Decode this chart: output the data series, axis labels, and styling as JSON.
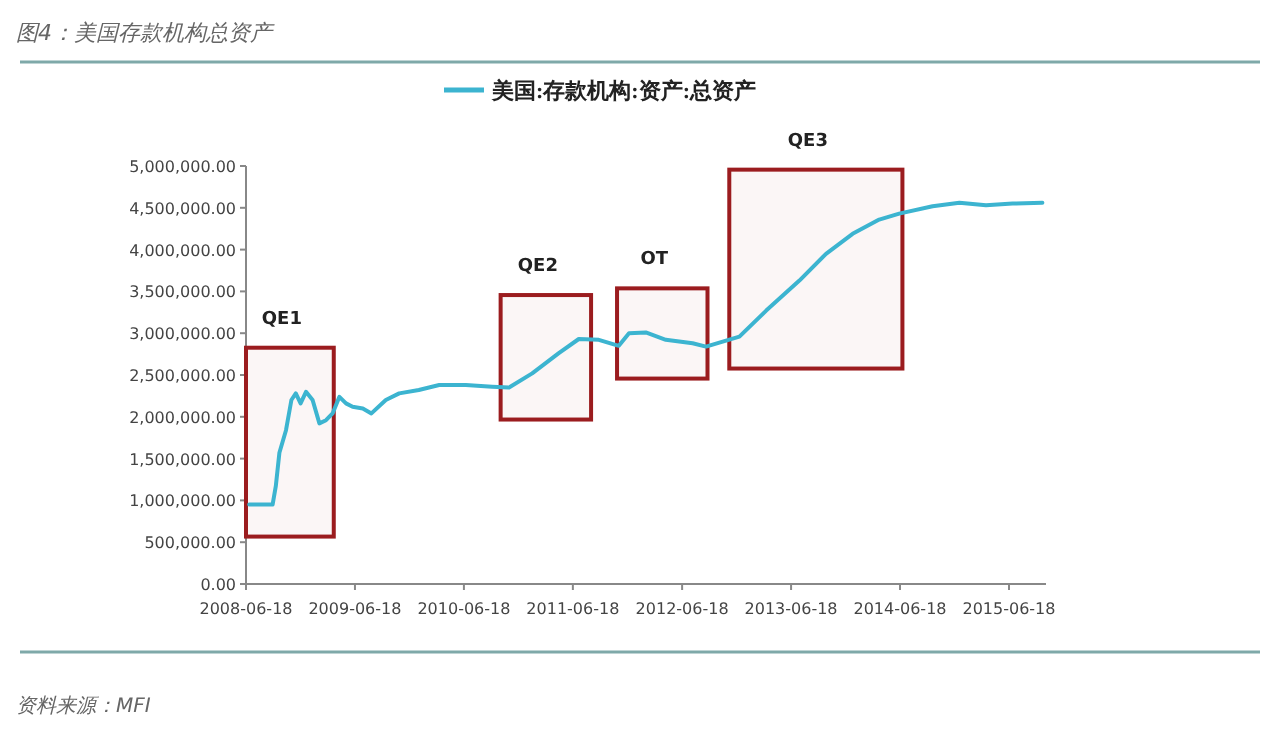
{
  "chart_data": {
    "type": "line",
    "title": "图4：美国存款机构总资产",
    "legend": "top",
    "x": [
      "2008-06-29",
      "2008-09-15",
      "2008-09-26",
      "2008-10-08",
      "2008-10-30",
      "2008-11-17",
      "2008-12-02",
      "2008-12-18",
      "2009-01-05",
      "2009-01-27",
      "2009-02-19",
      "2009-03-13",
      "2009-04-04",
      "2009-04-27",
      "2009-05-19",
      "2009-06-10",
      "2009-07-14",
      "2009-08-12",
      "2009-09-29",
      "2009-11-13",
      "2010-01-18",
      "2010-03-27",
      "2010-06-24",
      "2010-09-21",
      "2010-11-16",
      "2011-02-02",
      "2011-05-02",
      "2011-07-08",
      "2011-09-13",
      "2011-11-19",
      "2011-12-23",
      "2012-02-17",
      "2012-04-24",
      "2012-07-23",
      "2012-09-06",
      "2012-12-27",
      "2013-03-27",
      "2013-07-16",
      "2013-10-13",
      "2014-01-10",
      "2014-04-09",
      "2014-06-15",
      "2014-10-05",
      "2015-01-03",
      "2015-04-02",
      "2015-06-30",
      "2015-10-08"
    ],
    "series": [
      {
        "name": "美国:存款机构:资产:总资产",
        "color": "#3cb4d0",
        "values": [
          950000,
          950000,
          1170000,
          1570000,
          1840000,
          2200000,
          2280000,
          2160000,
          2300000,
          2200000,
          1920000,
          1960000,
          2040000,
          2240000,
          2160000,
          2120000,
          2100000,
          2040000,
          2200000,
          2280000,
          2320000,
          2380000,
          2380000,
          2360000,
          2350000,
          2520000,
          2760000,
          2930000,
          2920000,
          2850000,
          3000000,
          3010000,
          2920000,
          2880000,
          2840000,
          2960000,
          3270000,
          3630000,
          3950000,
          4190000,
          4360000,
          4430000,
          4520000,
          4560000,
          4530000,
          4550000,
          4560000
        ]
      }
    ],
    "xlim": [
      "2008-06-18",
      "2015-10-20"
    ],
    "xticks": [
      "2008-06-18",
      "2009-06-18",
      "2010-06-18",
      "2011-06-18",
      "2012-06-18",
      "2013-06-18",
      "2014-06-18",
      "2015-06-18"
    ],
    "ylim": [
      0,
      5000000
    ],
    "yticks": [
      {
        "value": 0,
        "label": "0.00"
      },
      {
        "value": 500000,
        "label": "500,000.00"
      },
      {
        "value": 1000000,
        "label": "1,000,000.00"
      },
      {
        "value": 1500000,
        "label": "1,500,000.00"
      },
      {
        "value": 2000000,
        "label": "2,000,000.00"
      },
      {
        "value": 2500000,
        "label": "2,500,000.00"
      },
      {
        "value": 3000000,
        "label": "3,000,000.00"
      },
      {
        "value": 3500000,
        "label": "3,500,000.00"
      },
      {
        "value": 4000000,
        "label": "4,000,000.00"
      },
      {
        "value": 4500000,
        "label": "4,500,000.00"
      },
      {
        "value": 5000000,
        "label": "5,000,000.00"
      }
    ],
    "bands": [
      {
        "axis": "x",
        "from": "2008-06-18",
        "to": "2009-04-08",
        "label": "QE1",
        "color": "#9b1c1f"
      },
      {
        "axis": "x",
        "from": "2010-10-19",
        "to": "2011-08-18",
        "label": "QE2",
        "color": "#9b1c1f"
      },
      {
        "axis": "x",
        "from": "2011-11-13",
        "to": "2012-09-11",
        "label": "OT",
        "color": "#9b1c1f"
      },
      {
        "axis": "x",
        "from": "2012-11-23",
        "to": "2014-06-26",
        "label": "QE3",
        "color": "#9b1c1f"
      }
    ],
    "annotations": [
      "资料来源：MFI"
    ]
  }
}
